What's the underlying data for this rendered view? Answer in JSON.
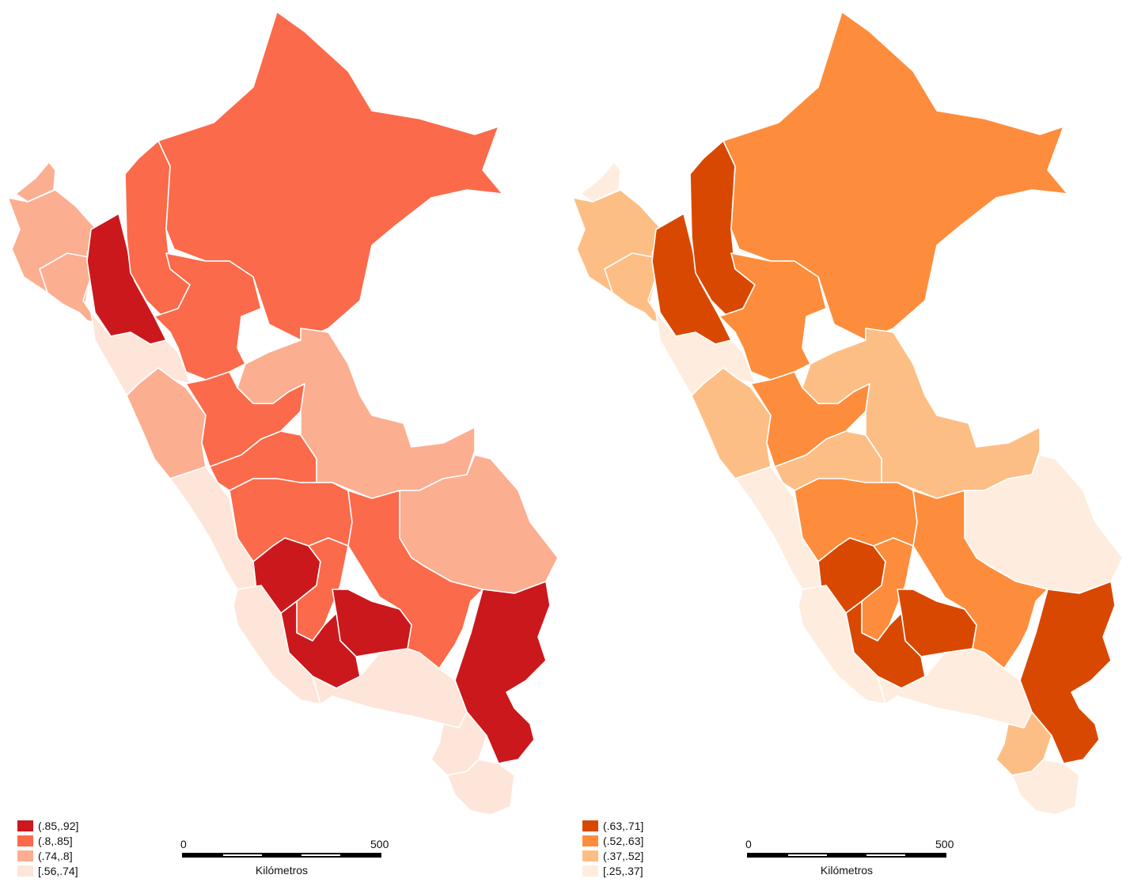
{
  "maps": [
    {
      "id": "left",
      "legend": [
        {
          "label": "(.85,.92]",
          "color": "#cb181d"
        },
        {
          "label": "(.8,.85]",
          "color": "#fb6a4a"
        },
        {
          "label": "(.74,.8]",
          "color": "#fcae91"
        },
        {
          "label": "[.56,.74]",
          "color": "#fee5d9"
        }
      ],
      "regions": {
        "loreto": 1,
        "amazonas": 1,
        "sanmartin": 1,
        "huanuco": 1,
        "pasco": 1,
        "junin": 1,
        "ayacucho_n": 1,
        "cusco": 1,
        "cajamarca": 0,
        "huancavelica": 0,
        "apurimac": 0,
        "ayacucho_s": 0,
        "puno": 0,
        "piura": 2,
        "lambayeque": 2,
        "ancash": 2,
        "ucayali": 2,
        "madre": 2,
        "tumbes": 2,
        "lalibertad": 3,
        "lima": 3,
        "ica": 3,
        "arequipa": 3,
        "moquegua": 3,
        "tacna": 3
      }
    },
    {
      "id": "right",
      "legend": [
        {
          "label": "(.63,.71]",
          "color": "#d94801"
        },
        {
          "label": "(.52,.63]",
          "color": "#fd8d3c"
        },
        {
          "label": "(.37,.52]",
          "color": "#fdbe85"
        },
        {
          "label": "[.25,.37]",
          "color": "#feedde"
        }
      ],
      "regions": {
        "loreto": 1,
        "sanmartin": 1,
        "huanuco": 1,
        "pasco": 2,
        "junin": 1,
        "ayacucho_n": 1,
        "cusco": 1,
        "amazonas": 0,
        "cajamarca": 0,
        "huancavelica": 0,
        "apurimac": 0,
        "ayacucho_s": 0,
        "puno": 0,
        "piura": 2,
        "lambayeque": 2,
        "ancash": 2,
        "ucayali": 2,
        "moquegua": 2,
        "tumbes": 3,
        "madre": 3,
        "lalibertad": 3,
        "lima": 3,
        "ica": 3,
        "arequipa": 3,
        "tacna": 3
      }
    }
  ],
  "scale": {
    "start": "0",
    "end": "500",
    "title": "Kilómetros"
  }
}
